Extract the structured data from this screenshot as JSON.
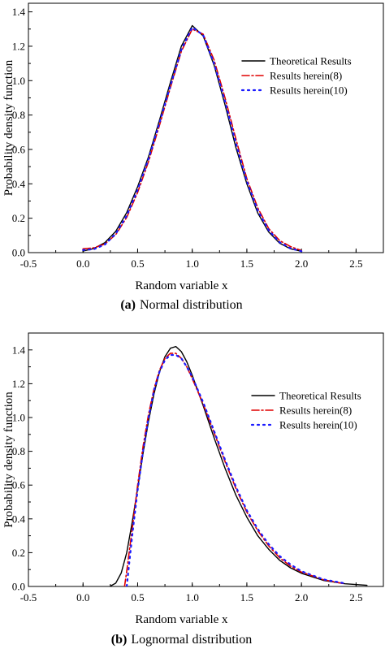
{
  "colors": {
    "theoretical": "#000000",
    "herein8": "#e00000",
    "herein10": "#1a1aff"
  },
  "chart_data": [
    {
      "type": "line",
      "panel": "a",
      "caption_letter": "(a)",
      "caption_text": "Normal distribution",
      "xlabel": "Random variable x",
      "ylabel": "Probability density function",
      "xlim": [
        -0.5,
        2.75
      ],
      "ylim": [
        0,
        1.45
      ],
      "xticks": [
        "-0.5",
        "0.0",
        "0.5",
        "1.0",
        "1.5",
        "2.0",
        "2.5"
      ],
      "yticks": [
        "0.0",
        "0.2",
        "0.4",
        "0.6",
        "0.8",
        "1.0",
        "1.2",
        "1.4"
      ],
      "legend_position": "right",
      "series": [
        {
          "name": "Theoretical Results",
          "style": "solid",
          "x": [
            0.0,
            0.1,
            0.2,
            0.3,
            0.4,
            0.5,
            0.6,
            0.7,
            0.8,
            0.9,
            1.0,
            1.1,
            1.2,
            1.3,
            1.4,
            1.5,
            1.6,
            1.7,
            1.8,
            1.9,
            2.0
          ],
          "y": [
            0.009,
            0.024,
            0.058,
            0.124,
            0.233,
            0.383,
            0.558,
            0.77,
            0.99,
            1.2,
            1.32,
            1.26,
            1.09,
            0.86,
            0.61,
            0.4,
            0.23,
            0.12,
            0.055,
            0.022,
            0.008
          ]
        },
        {
          "name": "Results herein(8)",
          "style": "dashdot",
          "x": [
            0.0,
            0.1,
            0.2,
            0.3,
            0.4,
            0.5,
            0.6,
            0.7,
            0.8,
            0.9,
            1.0,
            1.1,
            1.2,
            1.3,
            1.4,
            1.5,
            1.6,
            1.7,
            1.8,
            1.9,
            2.0
          ],
          "y": [
            0.022,
            0.028,
            0.05,
            0.105,
            0.205,
            0.35,
            0.53,
            0.74,
            0.96,
            1.17,
            1.3,
            1.27,
            1.12,
            0.9,
            0.66,
            0.43,
            0.26,
            0.14,
            0.07,
            0.035,
            0.012
          ]
        },
        {
          "name": "Results herein(10)",
          "style": "dotted",
          "x": [
            0.0,
            0.1,
            0.2,
            0.3,
            0.4,
            0.5,
            0.6,
            0.7,
            0.8,
            0.9,
            1.0,
            1.1,
            1.2,
            1.3,
            1.4,
            1.5,
            1.6,
            1.7,
            1.8,
            1.9,
            2.0
          ],
          "y": [
            0.015,
            0.02,
            0.047,
            0.11,
            0.215,
            0.365,
            0.545,
            0.755,
            0.97,
            1.18,
            1.31,
            1.265,
            1.1,
            0.88,
            0.635,
            0.415,
            0.245,
            0.13,
            0.06,
            0.025,
            0.008
          ]
        }
      ]
    },
    {
      "type": "line",
      "panel": "b",
      "caption_letter": "(b)",
      "caption_text": "Lognormal distribution",
      "xlabel": "Random variable x",
      "ylabel": "Probability density function",
      "xlim": [
        -0.5,
        2.75
      ],
      "ylim": [
        0,
        1.5
      ],
      "xticks": [
        "-0.5",
        "0.0",
        "0.5",
        "1.0",
        "1.5",
        "2.0",
        "2.5"
      ],
      "yticks": [
        "0.0",
        "0.2",
        "0.4",
        "0.6",
        "0.8",
        "1.0",
        "1.2",
        "1.4"
      ],
      "legend_position": "right",
      "series": [
        {
          "name": "Theoretical Results",
          "style": "solid",
          "x": [
            0.25,
            0.3,
            0.35,
            0.4,
            0.45,
            0.5,
            0.55,
            0.6,
            0.65,
            0.7,
            0.75,
            0.8,
            0.85,
            0.9,
            0.95,
            1.0,
            1.1,
            1.2,
            1.3,
            1.4,
            1.5,
            1.6,
            1.7,
            1.8,
            1.9,
            2.0,
            2.2,
            2.4,
            2.6
          ],
          "y": [
            0.002,
            0.02,
            0.08,
            0.2,
            0.38,
            0.58,
            0.79,
            0.98,
            1.14,
            1.27,
            1.36,
            1.41,
            1.42,
            1.39,
            1.33,
            1.25,
            1.07,
            0.88,
            0.7,
            0.54,
            0.41,
            0.3,
            0.22,
            0.155,
            0.11,
            0.078,
            0.036,
            0.016,
            0.007
          ]
        },
        {
          "name": "Results herein(8)",
          "style": "dashdot",
          "x": [
            0.38,
            0.4,
            0.45,
            0.5,
            0.55,
            0.6,
            0.65,
            0.7,
            0.75,
            0.8,
            0.85,
            0.9,
            0.95,
            1.0,
            1.1,
            1.2,
            1.3,
            1.4,
            1.5,
            1.6,
            1.7,
            1.8,
            1.9,
            2.0,
            2.2,
            2.4
          ],
          "y": [
            0.0,
            0.09,
            0.34,
            0.6,
            0.83,
            1.02,
            1.17,
            1.28,
            1.35,
            1.38,
            1.38,
            1.35,
            1.3,
            1.23,
            1.08,
            0.91,
            0.74,
            0.58,
            0.44,
            0.33,
            0.24,
            0.17,
            0.12,
            0.085,
            0.04,
            0.015
          ]
        },
        {
          "name": "Results herein(10)",
          "style": "dotted",
          "x": [
            0.4,
            0.45,
            0.5,
            0.55,
            0.6,
            0.65,
            0.7,
            0.75,
            0.8,
            0.85,
            0.9,
            0.95,
            1.0,
            1.1,
            1.2,
            1.3,
            1.4,
            1.5,
            1.6,
            1.7,
            1.8,
            1.9,
            2.0,
            2.2,
            2.4
          ],
          "y": [
            0.0,
            0.3,
            0.57,
            0.8,
            1.0,
            1.16,
            1.27,
            1.34,
            1.37,
            1.37,
            1.35,
            1.3,
            1.24,
            1.09,
            0.92,
            0.75,
            0.59,
            0.45,
            0.34,
            0.25,
            0.18,
            0.13,
            0.09,
            0.042,
            0.018
          ]
        }
      ]
    }
  ]
}
